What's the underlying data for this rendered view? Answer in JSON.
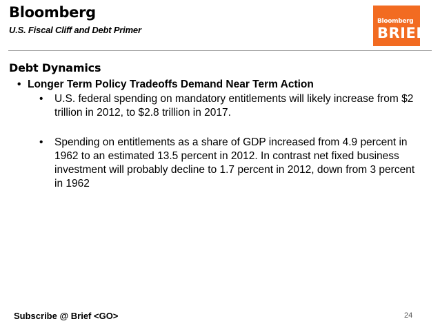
{
  "header": {
    "brand": "Bloomberg",
    "subtitle": "U.S. Fiscal Cliff  and Debt Primer",
    "logo": {
      "top": "Bloomberg",
      "main": "BRIEF",
      "color": "#f26b21"
    }
  },
  "content": {
    "heading": "Debt Dynamics",
    "bullet_glyph": "•",
    "point": "Longer Term Policy Tradeoffs Demand Near Term Action",
    "subpoints": [
      "U.S. federal spending on mandatory entitlements will likely increase from $2 trillion in 2012, to $2.8 trillion in 2017.",
      "Spending on entitlements as a share of GDP increased from 4.9 percent in 1962 to an estimated 13.5 percent in 2012.  In contrast net fixed business investment will probably decline to 1.7 percent in 2012, down from 3 percent in 1962"
    ]
  },
  "footer": {
    "subscribe": "Subscribe @ Brief <GO>",
    "page_number": "24"
  }
}
